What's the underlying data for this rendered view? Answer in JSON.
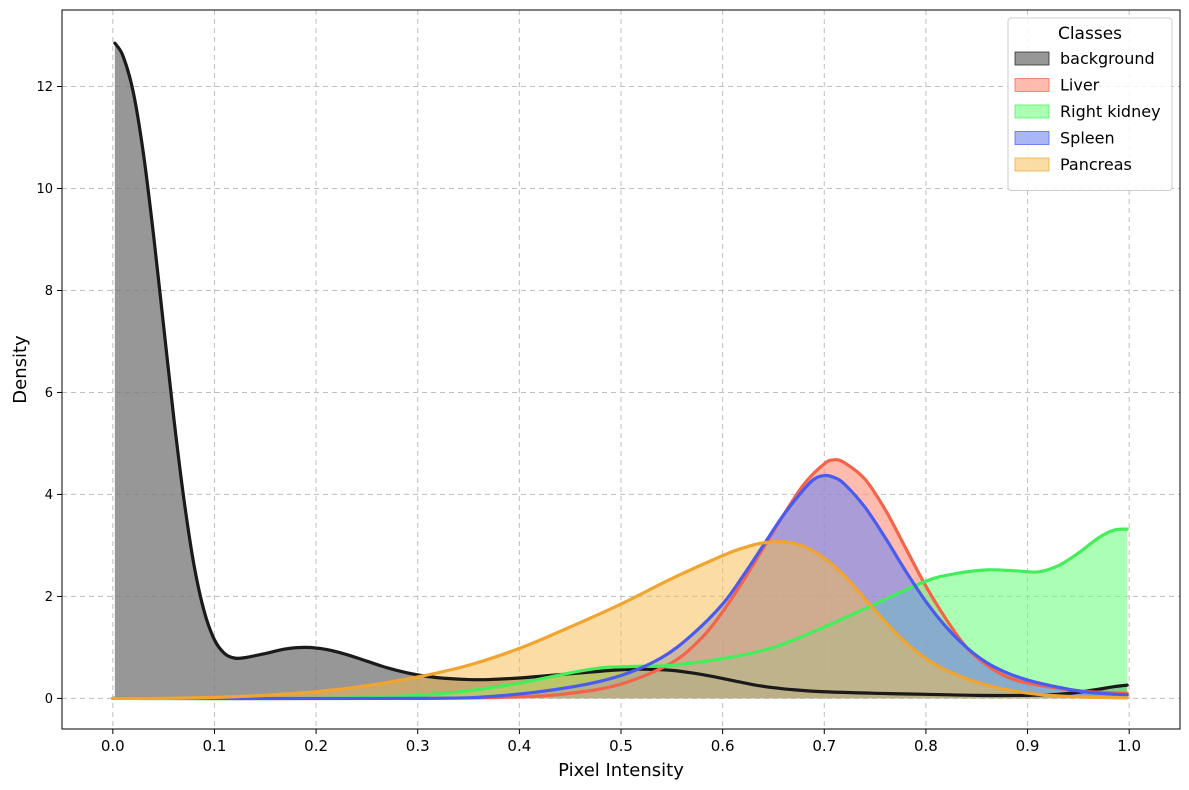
{
  "chart_data": {
    "type": "area",
    "title": "",
    "xlabel": "Pixel Intensity",
    "ylabel": "Density",
    "xlim": [
      -0.05,
      1.05
    ],
    "ylim": [
      -0.6,
      13.5
    ],
    "xticks": [
      "0.0",
      "0.1",
      "0.2",
      "0.3",
      "0.4",
      "0.5",
      "0.6",
      "0.7",
      "0.8",
      "0.9",
      "1.0"
    ],
    "yticks": [
      "0",
      "2",
      "4",
      "6",
      "8",
      "10",
      "12"
    ],
    "grid": true,
    "legend": {
      "title": "Classes",
      "position": "top-right"
    },
    "series": [
      {
        "name": "background",
        "line_color": "#1a1a1a",
        "fill_color": "#7a7a7a",
        "fill_opacity": 0.78,
        "points": [
          [
            0.002,
            12.85
          ],
          [
            0.01,
            12.6
          ],
          [
            0.02,
            11.9
          ],
          [
            0.03,
            10.7
          ],
          [
            0.04,
            9.1
          ],
          [
            0.05,
            7.3
          ],
          [
            0.06,
            5.5
          ],
          [
            0.07,
            3.9
          ],
          [
            0.08,
            2.6
          ],
          [
            0.09,
            1.7
          ],
          [
            0.1,
            1.15
          ],
          [
            0.11,
            0.88
          ],
          [
            0.12,
            0.79
          ],
          [
            0.13,
            0.8
          ],
          [
            0.15,
            0.88
          ],
          [
            0.17,
            0.97
          ],
          [
            0.19,
            1.0
          ],
          [
            0.21,
            0.96
          ],
          [
            0.23,
            0.86
          ],
          [
            0.25,
            0.73
          ],
          [
            0.27,
            0.6
          ],
          [
            0.29,
            0.5
          ],
          [
            0.31,
            0.43
          ],
          [
            0.33,
            0.39
          ],
          [
            0.35,
            0.37
          ],
          [
            0.37,
            0.37
          ],
          [
            0.4,
            0.4
          ],
          [
            0.43,
            0.45
          ],
          [
            0.46,
            0.5
          ],
          [
            0.49,
            0.55
          ],
          [
            0.51,
            0.57
          ],
          [
            0.53,
            0.57
          ],
          [
            0.55,
            0.55
          ],
          [
            0.57,
            0.5
          ],
          [
            0.59,
            0.43
          ],
          [
            0.61,
            0.35
          ],
          [
            0.63,
            0.27
          ],
          [
            0.65,
            0.21
          ],
          [
            0.67,
            0.17
          ],
          [
            0.7,
            0.13
          ],
          [
            0.75,
            0.1
          ],
          [
            0.8,
            0.08
          ],
          [
            0.85,
            0.06
          ],
          [
            0.9,
            0.06
          ],
          [
            0.93,
            0.08
          ],
          [
            0.95,
            0.12
          ],
          [
            0.97,
            0.18
          ],
          [
            0.985,
            0.23
          ],
          [
            0.998,
            0.26
          ]
        ]
      },
      {
        "name": "Liver",
        "line_color": "#f4634a",
        "fill_color": "#ff8f78",
        "fill_opacity": 0.6,
        "points": [
          [
            0.0,
            0.0
          ],
          [
            0.3,
            0.0
          ],
          [
            0.4,
            0.03
          ],
          [
            0.45,
            0.1
          ],
          [
            0.5,
            0.28
          ],
          [
            0.55,
            0.7
          ],
          [
            0.58,
            1.2
          ],
          [
            0.6,
            1.7
          ],
          [
            0.62,
            2.3
          ],
          [
            0.64,
            2.95
          ],
          [
            0.66,
            3.6
          ],
          [
            0.68,
            4.2
          ],
          [
            0.7,
            4.6
          ],
          [
            0.71,
            4.68
          ],
          [
            0.72,
            4.62
          ],
          [
            0.74,
            4.3
          ],
          [
            0.76,
            3.7
          ],
          [
            0.78,
            2.95
          ],
          [
            0.8,
            2.2
          ],
          [
            0.82,
            1.55
          ],
          [
            0.84,
            1.0
          ],
          [
            0.86,
            0.65
          ],
          [
            0.88,
            0.42
          ],
          [
            0.9,
            0.3
          ],
          [
            0.93,
            0.2
          ],
          [
            0.96,
            0.13
          ],
          [
            0.998,
            0.1
          ]
        ]
      },
      {
        "name": "Right kidney",
        "line_color": "#44ee5a",
        "fill_color": "#6cff80",
        "fill_opacity": 0.58,
        "points": [
          [
            0.0,
            0.0
          ],
          [
            0.2,
            0.0
          ],
          [
            0.3,
            0.06
          ],
          [
            0.35,
            0.15
          ],
          [
            0.4,
            0.3
          ],
          [
            0.45,
            0.5
          ],
          [
            0.48,
            0.6
          ],
          [
            0.5,
            0.62
          ],
          [
            0.52,
            0.63
          ],
          [
            0.55,
            0.65
          ],
          [
            0.6,
            0.78
          ],
          [
            0.65,
            1.0
          ],
          [
            0.7,
            1.4
          ],
          [
            0.75,
            1.85
          ],
          [
            0.8,
            2.3
          ],
          [
            0.83,
            2.45
          ],
          [
            0.86,
            2.52
          ],
          [
            0.89,
            2.5
          ],
          [
            0.91,
            2.48
          ],
          [
            0.93,
            2.6
          ],
          [
            0.95,
            2.85
          ],
          [
            0.97,
            3.15
          ],
          [
            0.985,
            3.3
          ],
          [
            0.998,
            3.32
          ]
        ]
      },
      {
        "name": "Spleen",
        "line_color": "#4a5cf0",
        "fill_color": "#7087f2",
        "fill_opacity": 0.6,
        "points": [
          [
            0.0,
            0.0
          ],
          [
            0.3,
            0.0
          ],
          [
            0.38,
            0.05
          ],
          [
            0.45,
            0.22
          ],
          [
            0.5,
            0.45
          ],
          [
            0.54,
            0.8
          ],
          [
            0.57,
            1.25
          ],
          [
            0.6,
            1.85
          ],
          [
            0.62,
            2.4
          ],
          [
            0.64,
            3.0
          ],
          [
            0.66,
            3.6
          ],
          [
            0.68,
            4.1
          ],
          [
            0.69,
            4.3
          ],
          [
            0.7,
            4.37
          ],
          [
            0.71,
            4.33
          ],
          [
            0.72,
            4.2
          ],
          [
            0.74,
            3.75
          ],
          [
            0.76,
            3.15
          ],
          [
            0.78,
            2.5
          ],
          [
            0.8,
            1.9
          ],
          [
            0.82,
            1.4
          ],
          [
            0.84,
            1.0
          ],
          [
            0.86,
            0.7
          ],
          [
            0.88,
            0.5
          ],
          [
            0.9,
            0.36
          ],
          [
            0.93,
            0.22
          ],
          [
            0.96,
            0.12
          ],
          [
            0.998,
            0.07
          ]
        ]
      },
      {
        "name": "Pancreas",
        "line_color": "#f0a530",
        "fill_color": "#f5b94a",
        "fill_opacity": 0.5,
        "points": [
          [
            0.0,
            0.0
          ],
          [
            0.05,
            0.0
          ],
          [
            0.1,
            0.02
          ],
          [
            0.15,
            0.06
          ],
          [
            0.2,
            0.13
          ],
          [
            0.25,
            0.25
          ],
          [
            0.3,
            0.42
          ],
          [
            0.35,
            0.65
          ],
          [
            0.4,
            0.98
          ],
          [
            0.45,
            1.4
          ],
          [
            0.5,
            1.85
          ],
          [
            0.55,
            2.35
          ],
          [
            0.6,
            2.8
          ],
          [
            0.62,
            2.95
          ],
          [
            0.64,
            3.05
          ],
          [
            0.66,
            3.07
          ],
          [
            0.68,
            2.98
          ],
          [
            0.7,
            2.75
          ],
          [
            0.72,
            2.4
          ],
          [
            0.74,
            1.95
          ],
          [
            0.76,
            1.5
          ],
          [
            0.78,
            1.1
          ],
          [
            0.8,
            0.78
          ],
          [
            0.82,
            0.55
          ],
          [
            0.85,
            0.32
          ],
          [
            0.88,
            0.17
          ],
          [
            0.91,
            0.08
          ],
          [
            0.95,
            0.03
          ],
          [
            0.998,
            0.01
          ]
        ]
      }
    ]
  }
}
